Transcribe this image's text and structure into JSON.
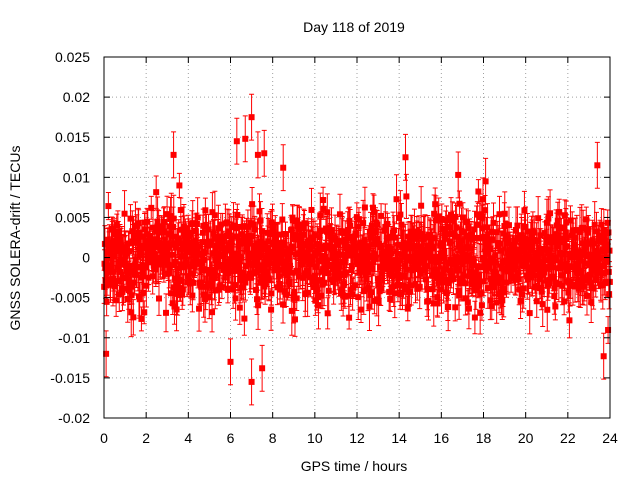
{
  "chart_data": {
    "type": "scatter",
    "title": "Day 118 of 2019",
    "xlabel": "GPS time / hours",
    "ylabel": "GNSS SOLERA-drift / TECUs",
    "xlim": [
      0,
      24
    ],
    "ylim": [
      -0.02,
      0.025
    ],
    "xticks": [
      "0",
      "2",
      "4",
      "6",
      "8",
      "10",
      "12",
      "14",
      "16",
      "18",
      "20",
      "22",
      "24"
    ],
    "yticks": [
      "-0.02",
      "-0.015",
      "-0.01",
      "-0.005",
      "0",
      "0.005",
      "0.01",
      "0.015",
      "0.02",
      "0.025"
    ],
    "grid": true,
    "legend": "none",
    "series": [
      {
        "name": "SOLERA drift",
        "color": "#ff0000",
        "marker": "square",
        "error_bars": true,
        "n_points": 1440,
        "mean": 0.0,
        "approx_std": 0.0038,
        "approx_error_bar": 0.0022,
        "y_extent": [
          -0.0155,
          0.0175
        ],
        "highlight_points": [
          {
            "x": 0.1,
            "y": -0.012
          },
          {
            "x": 3.3,
            "y": 0.0128
          },
          {
            "x": 6.0,
            "y": -0.013
          },
          {
            "x": 6.3,
            "y": 0.0145
          },
          {
            "x": 6.7,
            "y": 0.0148
          },
          {
            "x": 7.0,
            "y": 0.0175
          },
          {
            "x": 7.0,
            "y": -0.0155
          },
          {
            "x": 7.3,
            "y": 0.0128
          },
          {
            "x": 7.6,
            "y": 0.013
          },
          {
            "x": 7.5,
            "y": -0.0138
          },
          {
            "x": 8.5,
            "y": 0.0112
          },
          {
            "x": 14.3,
            "y": 0.0125
          },
          {
            "x": 16.8,
            "y": 0.0103
          },
          {
            "x": 18.1,
            "y": 0.0095
          },
          {
            "x": 23.4,
            "y": 0.0115
          },
          {
            "x": 23.7,
            "y": -0.0123
          }
        ]
      }
    ]
  }
}
